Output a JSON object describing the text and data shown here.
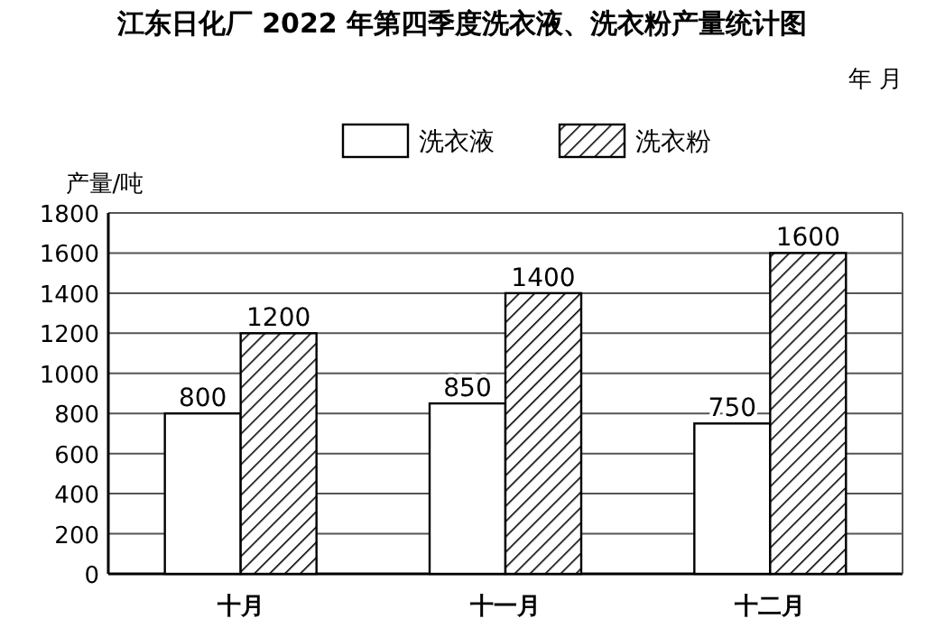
{
  "chart_data": {
    "type": "bar",
    "title": "江东日化厂 2022 年第四季度洗衣液、洗衣粉产量统计图",
    "subtitle": "年  月",
    "ylabel": "产量/吨",
    "categories": [
      "十月",
      "十一月",
      "十二月"
    ],
    "series": [
      {
        "name": "洗衣液",
        "color": "#ffffff",
        "values": [
          800,
          850,
          750
        ]
      },
      {
        "name": "洗衣粉",
        "color": "#000000",
        "values": [
          1200,
          1400,
          1600
        ]
      }
    ],
    "ylim": [
      0,
      1800
    ],
    "yticks": [
      0,
      200,
      400,
      600,
      800,
      1000,
      1200,
      1400,
      1600,
      1800
    ],
    "grid": "y",
    "legend": "top",
    "data_labels": true
  }
}
